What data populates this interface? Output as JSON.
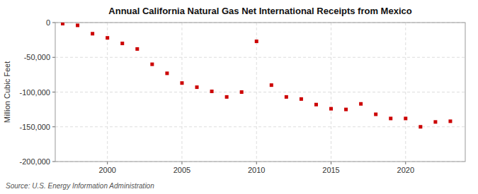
{
  "chart_data": {
    "type": "scatter",
    "title": "Annual California Natural Gas Net International Receipts from Mexico",
    "y_label": "Million Cubic Feet",
    "source": "Source: U.S. Energy Information Administration",
    "color": "#cc0000",
    "marker": "square",
    "grid": true,
    "x": [
      1997,
      1998,
      1999,
      2000,
      2001,
      2002,
      2003,
      2004,
      2005,
      2006,
      2007,
      2008,
      2009,
      2010,
      2011,
      2012,
      2013,
      2014,
      2015,
      2016,
      2017,
      2018,
      2019,
      2020,
      2021,
      2022,
      2023
    ],
    "values": [
      -1500,
      -4000,
      -16000,
      -22000,
      -30000,
      -38000,
      -60000,
      -73000,
      -87000,
      -93000,
      -99000,
      -107000,
      -100000,
      -27000,
      -90000,
      -107000,
      -110000,
      -118000,
      -124000,
      -125000,
      -117000,
      -132000,
      -138000,
      -138000,
      -150000,
      -143000,
      -142000
    ],
    "xlim": [
      1996.5,
      2024
    ],
    "xticks": [
      2000,
      2005,
      2010,
      2015,
      2020
    ],
    "ylim": [
      -200000,
      0
    ],
    "yticks": [
      0,
      {
        "value": -50000,
        "label": "-50,000"
      },
      {
        "value": -100000,
        "label": "-100,000"
      },
      {
        "value": -150000,
        "label": "-150,000"
      },
      {
        "value": -200000,
        "label": "-200,000"
      }
    ]
  }
}
